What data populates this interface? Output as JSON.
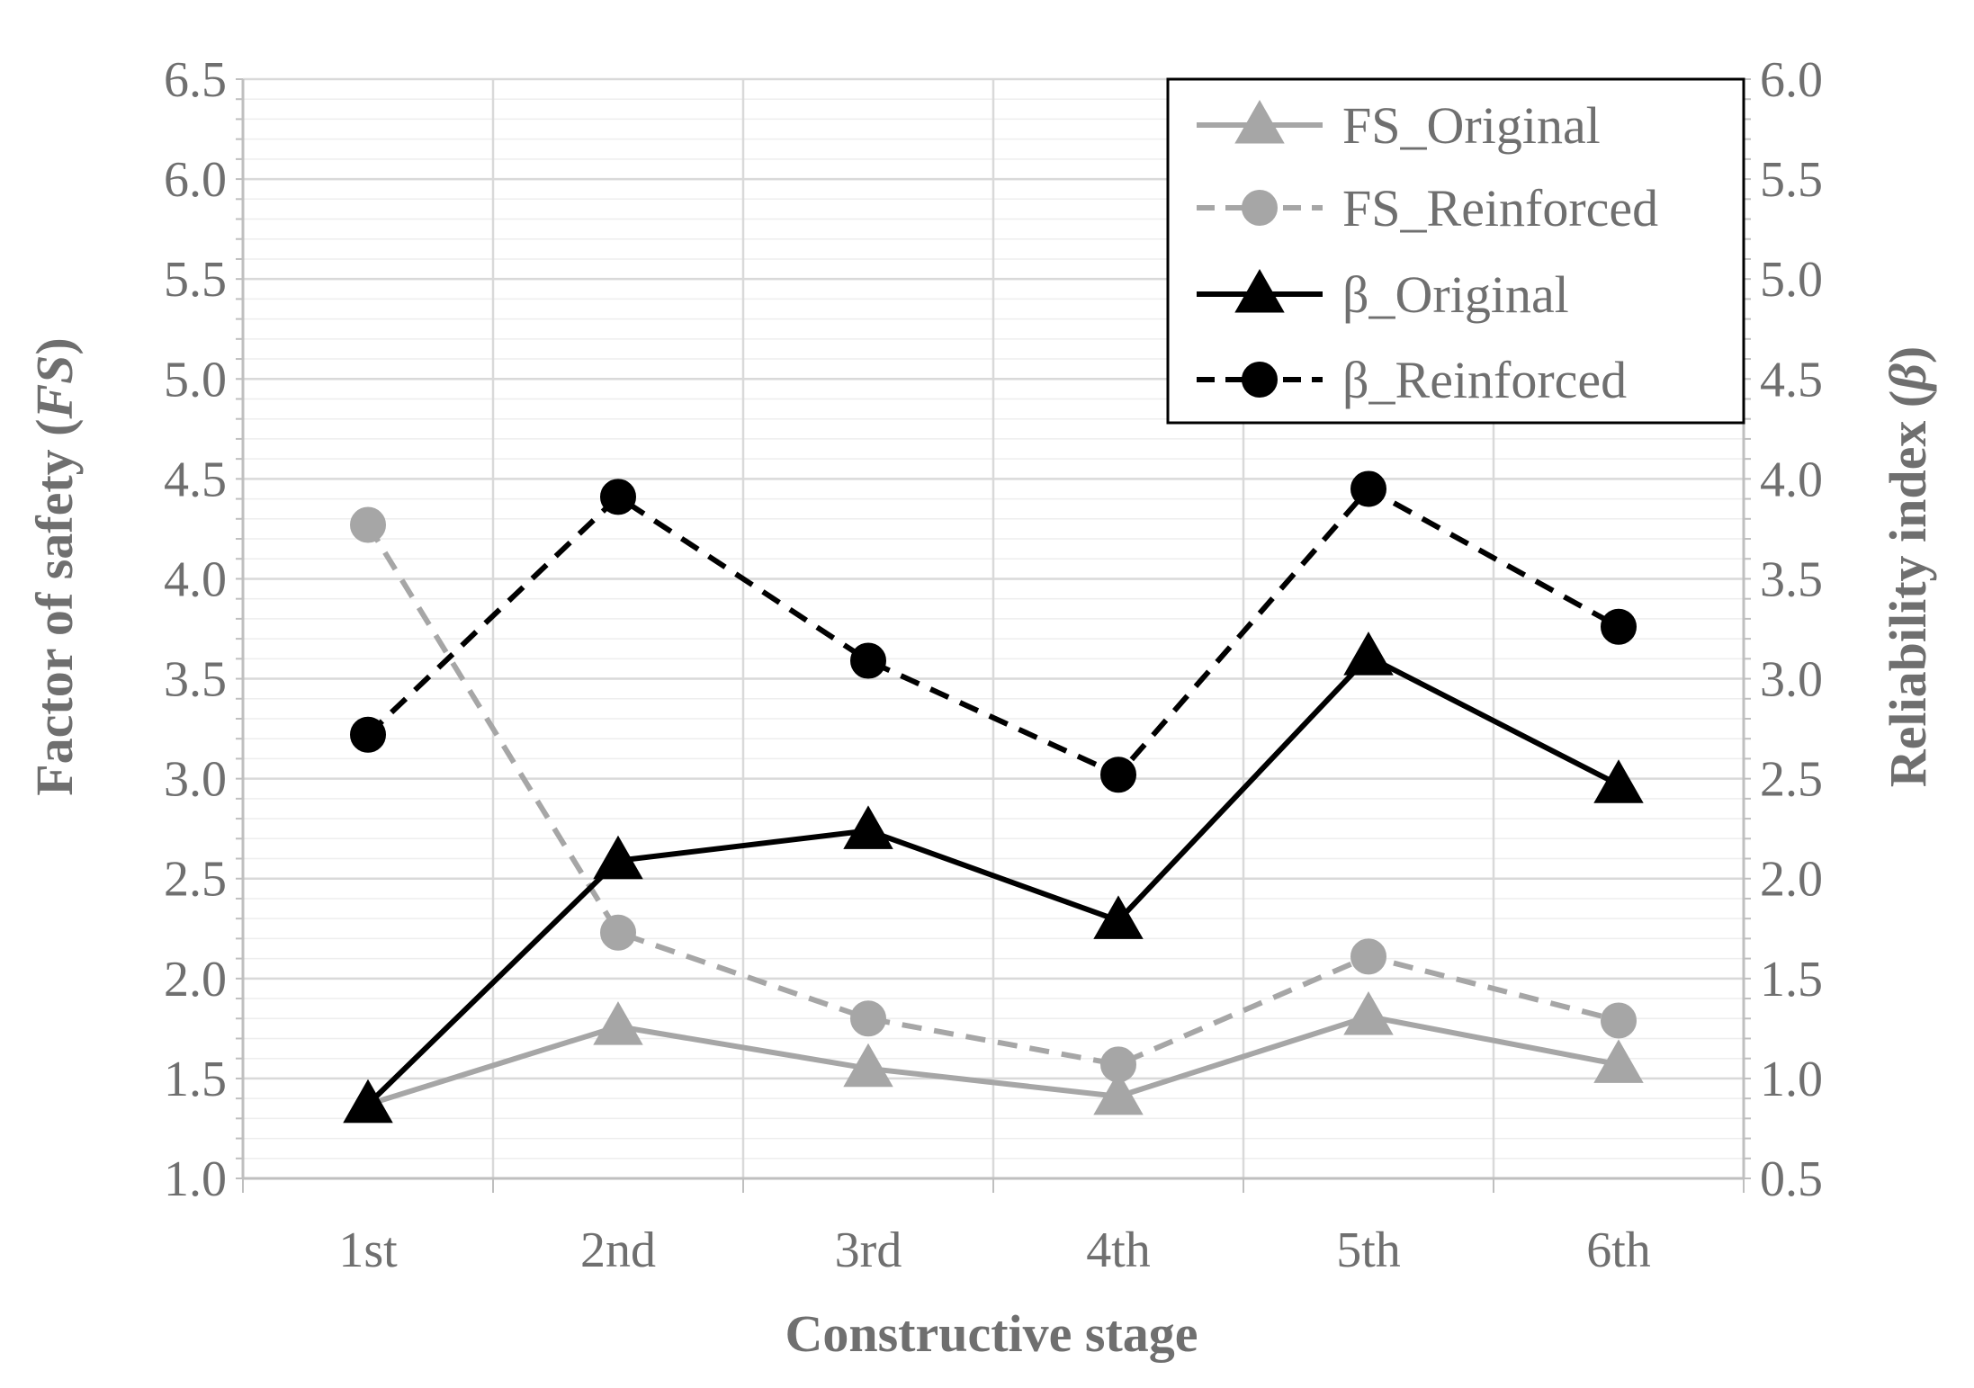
{
  "chart_data": {
    "type": "line",
    "xlabel": "Constructive stage",
    "ylabel_left": "Factor of safety (FS)",
    "ylabel_left_parts": [
      "Factor of safety (",
      "FS",
      ")"
    ],
    "ylabel_right": "Reliability index (β)",
    "ylabel_right_parts": [
      "Reliability index (",
      "β",
      ")"
    ],
    "categories": [
      "1st",
      "2nd",
      "3rd",
      "4th",
      "5th",
      "6th"
    ],
    "ylim_left": [
      1.0,
      6.5
    ],
    "ylim_right": [
      0.5,
      6.0
    ],
    "yticks_left": [
      "1.0",
      "1.5",
      "2.0",
      "2.5",
      "3.0",
      "3.5",
      "4.0",
      "4.5",
      "5.0",
      "5.5",
      "6.0",
      "6.5"
    ],
    "yticks_right": [
      "0.5",
      "1.0",
      "1.5",
      "2.0",
      "2.5",
      "3.0",
      "3.5",
      "4.0",
      "4.5",
      "5.0",
      "5.5",
      "6.0"
    ],
    "grid": true,
    "legend_position": "top-right",
    "series": [
      {
        "name": "FS_Original",
        "axis": "left",
        "values": [
          1.37,
          1.76,
          1.55,
          1.41,
          1.81,
          1.57
        ],
        "color": "#a6a6a6",
        "dashed": false,
        "marker": "triangle"
      },
      {
        "name": "FS_Reinforced",
        "axis": "left",
        "values": [
          4.27,
          2.23,
          1.8,
          1.57,
          2.11,
          1.79
        ],
        "color": "#a6a6a6",
        "dashed": true,
        "marker": "circle"
      },
      {
        "name": "β_Original",
        "axis": "right",
        "values": [
          0.87,
          2.09,
          2.24,
          1.79,
          3.11,
          2.47
        ],
        "color": "#000000",
        "dashed": false,
        "marker": "triangle"
      },
      {
        "name": "β_Reinforced",
        "axis": "right",
        "values": [
          2.72,
          3.91,
          3.09,
          2.52,
          3.95,
          3.26
        ],
        "color": "#000000",
        "dashed": true,
        "marker": "circle"
      }
    ]
  }
}
